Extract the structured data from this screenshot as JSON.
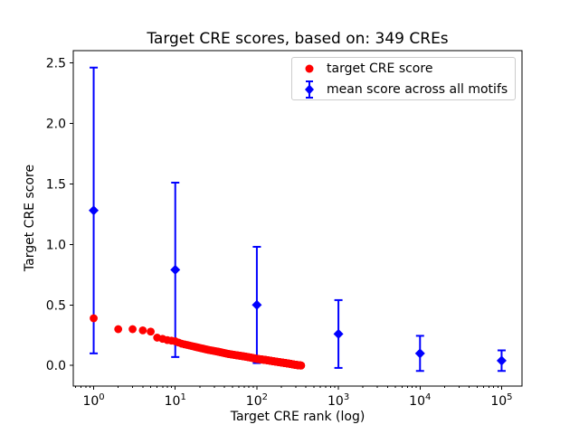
{
  "title": "Target CRE scores, based on: 349 CREs",
  "axes": {
    "xlabel": "Target CRE rank (log)",
    "ylabel": "Target CRE score",
    "x_scale": "log",
    "x_major_tick_exponents": [
      0,
      1,
      2,
      3,
      4,
      5
    ],
    "y_tick_labels": [
      "0.0",
      "0.5",
      "1.0",
      "1.5",
      "2.0",
      "2.5"
    ],
    "text_color": "#000000",
    "spine_color": "#000000"
  },
  "legend": {
    "position": "upper right",
    "items": [
      {
        "label": "target CRE score",
        "marker": "red-circle",
        "color": "#ff0000"
      },
      {
        "label": "mean score across all motifs",
        "marker": "blue-diamond-with-errorbar",
        "color": "#0000ff"
      }
    ]
  },
  "chart_data": {
    "type": "scatter",
    "title": "Target CRE scores, based on: 349 CREs",
    "xlabel": "Target CRE rank (log)",
    "ylabel": "Target CRE score",
    "x_scale": "log",
    "xlim_log10": [
      -0.25,
      5.25
    ],
    "ylim": [
      -0.17,
      2.6
    ],
    "grid": false,
    "legend_position": "upper right",
    "series": [
      {
        "name": "target CRE score",
        "type": "scatter",
        "marker": "circle",
        "color": "#ff0000",
        "n_points": 349,
        "ranks": "1..349",
        "note": "349 points at integer ranks 1-349; scores descend along curve, interpolated in log10(rank) between anchors",
        "anchors": [
          [
            1,
            0.39
          ],
          [
            2,
            0.3
          ],
          [
            3,
            0.3
          ],
          [
            4,
            0.29
          ],
          [
            5,
            0.28
          ],
          [
            6,
            0.23
          ],
          [
            7,
            0.22
          ],
          [
            8,
            0.21
          ],
          [
            9,
            0.205
          ],
          [
            10,
            0.2
          ],
          [
            12,
            0.18
          ],
          [
            15,
            0.165
          ],
          [
            20,
            0.145
          ],
          [
            25,
            0.13
          ],
          [
            33,
            0.115
          ],
          [
            45,
            0.095
          ],
          [
            56,
            0.085
          ],
          [
            70,
            0.075
          ],
          [
            85,
            0.065
          ],
          [
            100,
            0.055
          ],
          [
            130,
            0.045
          ],
          [
            160,
            0.035
          ],
          [
            200,
            0.025
          ],
          [
            250,
            0.015
          ],
          [
            300,
            0.005
          ],
          [
            349,
            0.0
          ]
        ]
      },
      {
        "name": "mean score across all motifs",
        "type": "errorbar",
        "marker": "diamond",
        "color": "#0000ff",
        "points": [
          {
            "rank": 1,
            "mean": 1.28,
            "std": 1.18
          },
          {
            "rank": 10,
            "mean": 0.79,
            "std": 0.72
          },
          {
            "rank": 100,
            "mean": 0.5,
            "std": 0.48
          },
          {
            "rank": 1000,
            "mean": 0.26,
            "std": 0.28
          },
          {
            "rank": 10000,
            "mean": 0.1,
            "std": 0.145
          },
          {
            "rank": 100000,
            "mean": 0.04,
            "std": 0.085
          }
        ]
      }
    ]
  }
}
